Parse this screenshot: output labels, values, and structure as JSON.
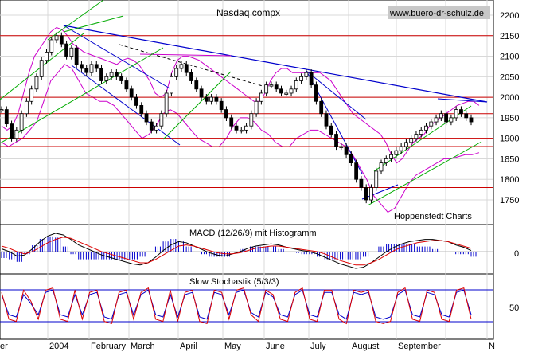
{
  "page": {
    "website": "www.buero-dr-schulz.de",
    "credit": "Hoppenstedt Charts"
  },
  "chart_data": [
    {
      "type": "candlestick",
      "title": "Nasdaq compx",
      "period": "2004",
      "ylim": [
        1700,
        2250
      ],
      "y_ticks": [
        "2200",
        "2150",
        "2100",
        "2050",
        "2000",
        "1950",
        "1900",
        "1850",
        "1800",
        "1750"
      ],
      "x_labels": [
        "2004",
        "February",
        "March",
        "April",
        "May",
        "June",
        "July",
        "August",
        "September",
        "N"
      ],
      "x_partial_left": "er",
      "closes": [
        1970,
        1935,
        1900,
        1920,
        1960,
        1990,
        2020,
        2050,
        2090,
        2110,
        2140,
        2150,
        2130,
        2100,
        2120,
        2080,
        2070,
        2060,
        2080,
        2070,
        2040,
        2050,
        2060,
        2050,
        2040,
        2020,
        2000,
        1980,
        1960,
        1940,
        1920,
        1930,
        1960,
        2010,
        2050,
        2070,
        2080,
        2060,
        2040,
        2020,
        2000,
        1990,
        2000,
        1990,
        1970,
        1950,
        1930,
        1920,
        1920,
        1930,
        1960,
        1990,
        2010,
        2030,
        2030,
        2020,
        2010,
        2010,
        2020,
        2040,
        2050,
        2060,
        2030,
        1990,
        1960,
        1930,
        1910,
        1880,
        1880,
        1860,
        1840,
        1800,
        1780,
        1750,
        1780,
        1820,
        1840,
        1850,
        1860,
        1870,
        1880,
        1890,
        1900,
        1910,
        1920,
        1930,
        1940,
        1950,
        1960,
        1940,
        1950,
        1970,
        1960,
        1950,
        1940
      ],
      "overlays": {
        "horizontal_levels": [
          2150,
          2000,
          1960,
          1900,
          1880,
          1780
        ],
        "upper_band": [
          1930,
          1920,
          1930,
          1960,
          2010,
          2060,
          2100,
          2120,
          2140,
          2160,
          2170,
          2165,
          2150,
          2130,
          2120,
          2110,
          2105,
          2100,
          2095,
          2090,
          2085,
          2080,
          2090,
          2095,
          2090,
          2080,
          2060,
          2040,
          2010,
          2000,
          2010,
          2060,
          2090,
          2100,
          2100,
          2095,
          2090,
          2080,
          2070,
          2060,
          2050,
          2040,
          2030,
          2020,
          2010,
          2000,
          1990,
          1990,
          2010,
          2040,
          2060,
          2070,
          2070,
          2060,
          2060,
          2060,
          2060,
          2060,
          2060,
          2050,
          2040,
          2020,
          2000,
          1980,
          1960,
          1950,
          1940,
          1930,
          1920,
          1910,
          1890,
          1860,
          1840,
          1850,
          1870,
          1890,
          1900,
          1910,
          1930,
          1940,
          1950,
          1960,
          1970,
          1980,
          1985,
          1990,
          1990,
          1980
        ],
        "lower_band": [
          1890,
          1880,
          1890,
          1900,
          1920,
          1940,
          1990,
          2040,
          2060,
          2080,
          2070,
          2040,
          2010,
          2000,
          1990,
          1990,
          1980,
          1960,
          1940,
          1920,
          1900,
          1910,
          1930,
          1960,
          1970,
          1960,
          1940,
          1920,
          1900,
          1890,
          1880,
          1880,
          1900,
          1930,
          1950,
          1950,
          1940,
          1920,
          1910,
          1890,
          1880,
          1880,
          1900,
          1910,
          1920,
          1920,
          1910,
          1900,
          1890,
          1880,
          1860,
          1830,
          1800,
          1760,
          1740,
          1720,
          1730,
          1760,
          1790,
          1810,
          1820,
          1830,
          1840,
          1850,
          1850,
          1855,
          1860,
          1860,
          1865
        ]
      }
    },
    {
      "type": "macd",
      "title": "MACD (12/26/9) mit Histogramm",
      "y_ticks": [
        "0"
      ],
      "macd_line": [
        5,
        0,
        -8,
        -6,
        5,
        18,
        28,
        33,
        30,
        22,
        12,
        6,
        0,
        -6,
        -10,
        -14,
        -18,
        -22,
        -24,
        -20,
        -10,
        2,
        12,
        18,
        16,
        10,
        4,
        -2,
        -6,
        -8,
        -4,
        0,
        6,
        10,
        12,
        14,
        12,
        8,
        5,
        2,
        0,
        -4,
        -10,
        -16,
        -22,
        -26,
        -30,
        -28,
        -20,
        -10,
        0,
        8,
        14,
        18,
        20,
        22,
        22,
        20,
        18,
        12,
        8,
        2
      ],
      "signal_line": [
        10,
        6,
        0,
        -4,
        0,
        8,
        16,
        22,
        26,
        24,
        18,
        12,
        6,
        0,
        -4,
        -8,
        -12,
        -16,
        -20,
        -20,
        -14,
        -6,
        2,
        10,
        12,
        10,
        6,
        2,
        -2,
        -4,
        -4,
        -2,
        2,
        6,
        8,
        10,
        10,
        8,
        6,
        4,
        2,
        0,
        -4,
        -10,
        -16,
        -20,
        -24,
        -24,
        -20,
        -14,
        -6,
        2,
        8,
        12,
        16,
        18,
        20,
        20,
        18,
        14,
        10,
        6
      ]
    },
    {
      "type": "stochastic",
      "title": "Slow Stochastik (5/3/3)",
      "y_ticks": [
        "50"
      ],
      "k_line": [
        80,
        20,
        15,
        85,
        60,
        20,
        85,
        90,
        20,
        15,
        85,
        20,
        80,
        85,
        15,
        10,
        80,
        85,
        20,
        80,
        90,
        20,
        15,
        85,
        15,
        80,
        85,
        15,
        10,
        85,
        80,
        20,
        85,
        90,
        30,
        15,
        85,
        75,
        20,
        15,
        80,
        90,
        20,
        15,
        85,
        85,
        20,
        10,
        85,
        80,
        85,
        15,
        10,
        15,
        80,
        90,
        20,
        15,
        85,
        80,
        20,
        15,
        85,
        90,
        20
      ],
      "d_line": [
        75,
        30,
        25,
        75,
        55,
        30,
        80,
        85,
        30,
        25,
        75,
        30,
        75,
        80,
        25,
        20,
        75,
        80,
        30,
        75,
        85,
        30,
        25,
        75,
        25,
        75,
        80,
        25,
        20,
        80,
        75,
        30,
        80,
        85,
        35,
        25,
        80,
        70,
        30,
        25,
        75,
        85,
        30,
        25,
        80,
        80,
        30,
        20,
        80,
        75,
        80,
        25,
        20,
        25,
        75,
        85,
        30,
        25,
        80,
        75,
        30,
        25,
        80,
        85,
        30
      ]
    }
  ]
}
